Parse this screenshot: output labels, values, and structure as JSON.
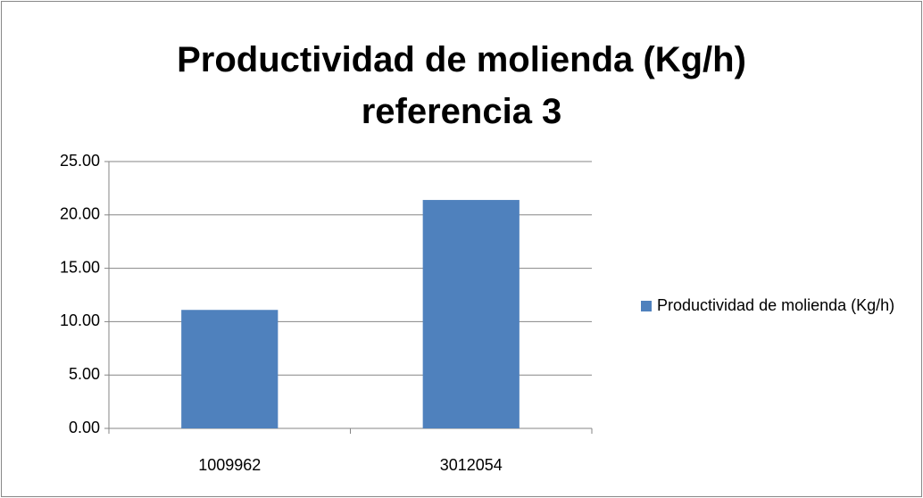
{
  "chart_data": {
    "type": "bar",
    "title": "Productividad de molienda (Kg/h) referencia 3",
    "categories": [
      "1009962",
      "3012054"
    ],
    "series": [
      {
        "name": "Productividad de molienda (Kg/h)",
        "color": "#4f81bd",
        "values": [
          11.1,
          21.4
        ]
      }
    ],
    "ylim": [
      0,
      25
    ],
    "yticks": [
      {
        "value": 0,
        "label": "0.00"
      },
      {
        "value": 5,
        "label": "5.00"
      },
      {
        "value": 10,
        "label": "10.00"
      },
      {
        "value": 15,
        "label": "15.00"
      },
      {
        "value": 20,
        "label": "20.00"
      },
      {
        "value": 25,
        "label": "25.00"
      }
    ],
    "grid": true,
    "legend": "right"
  }
}
